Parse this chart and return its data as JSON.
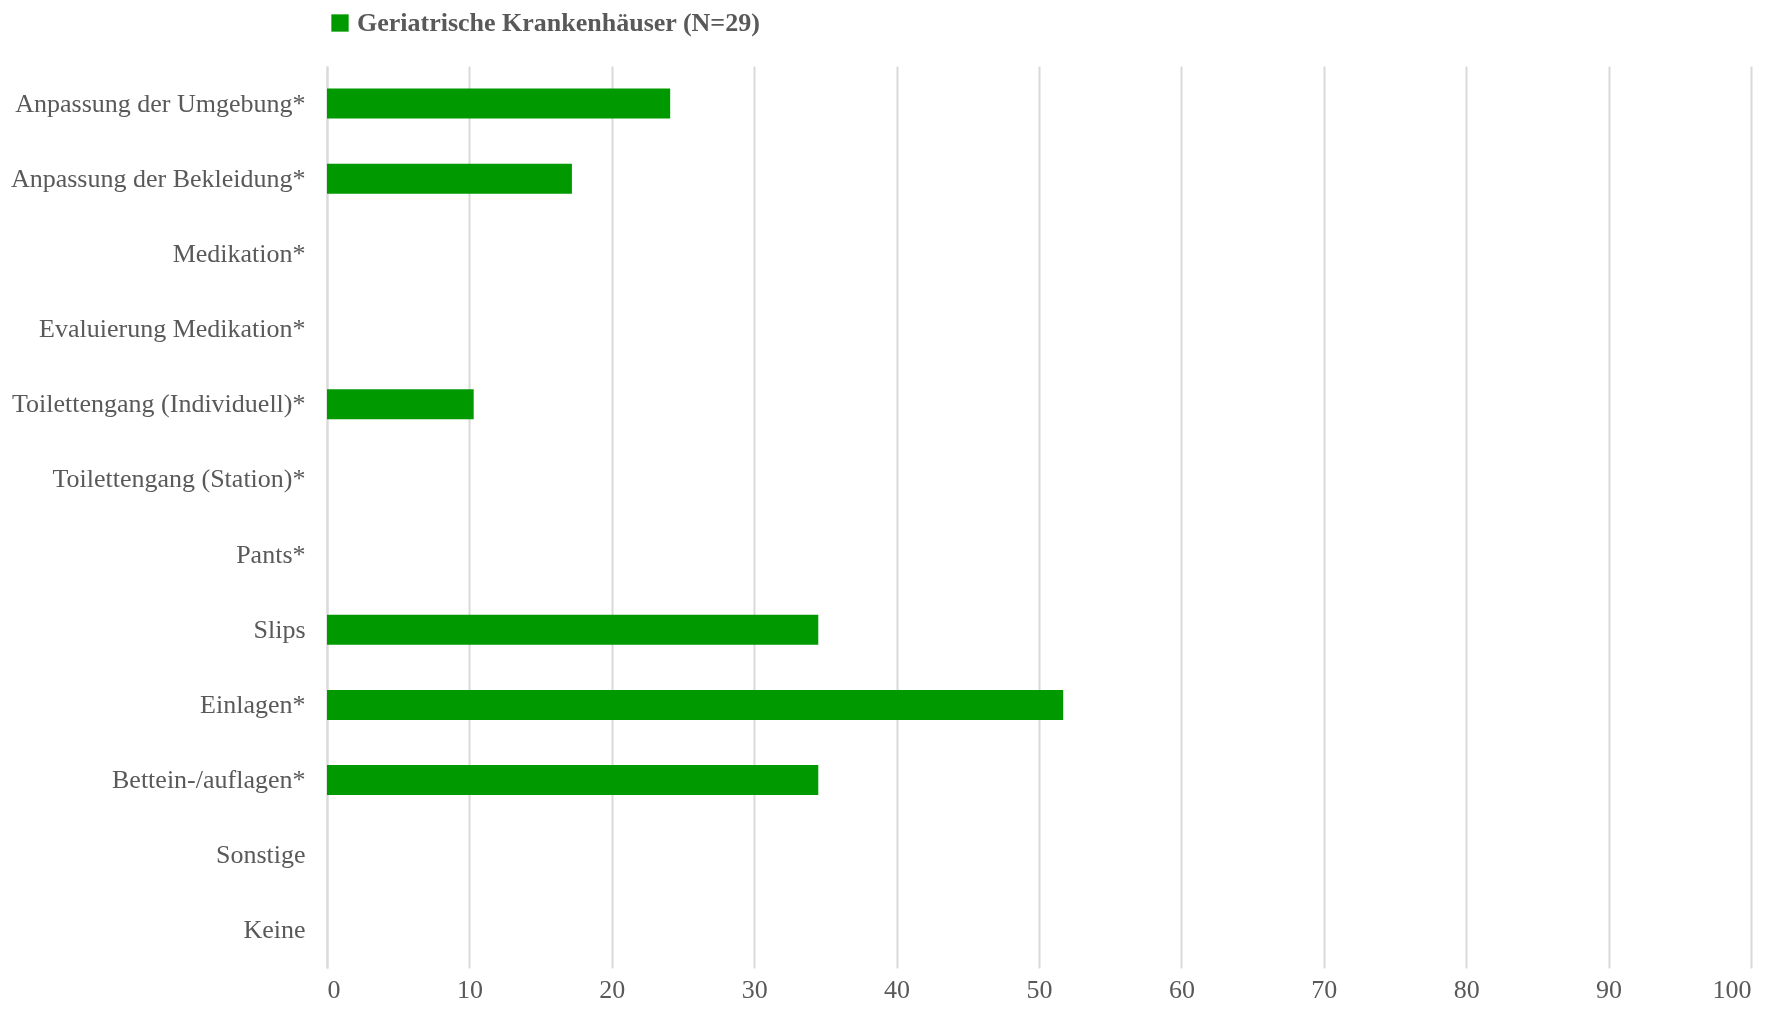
{
  "chart_data": {
    "type": "bar",
    "orientation": "horizontal",
    "categories": [
      "Anpassung der Umgebung*",
      "Anpassung der Bekleidung*",
      "Medikation*",
      "Evaluierung Medikation*",
      "Toilettengang (Individuell)*",
      "Toilettengang (Station)*",
      "Pants*",
      "Slips",
      "Einlagen*",
      "Bettein-/auflagen*",
      "Sonstige",
      "Keine"
    ],
    "series": [
      {
        "name": "Geriatrische Krankenhäuser (N=29)",
        "color": "#009900",
        "values": [
          24.1,
          17.2,
          0,
          0,
          10.3,
          0,
          0,
          34.5,
          51.7,
          34.5,
          0,
          0
        ]
      }
    ],
    "xlim": [
      0,
      100
    ],
    "xticks": [
      0,
      10,
      20,
      30,
      40,
      50,
      60,
      70,
      80,
      90,
      100
    ],
    "grid": "x",
    "legend": "top"
  }
}
